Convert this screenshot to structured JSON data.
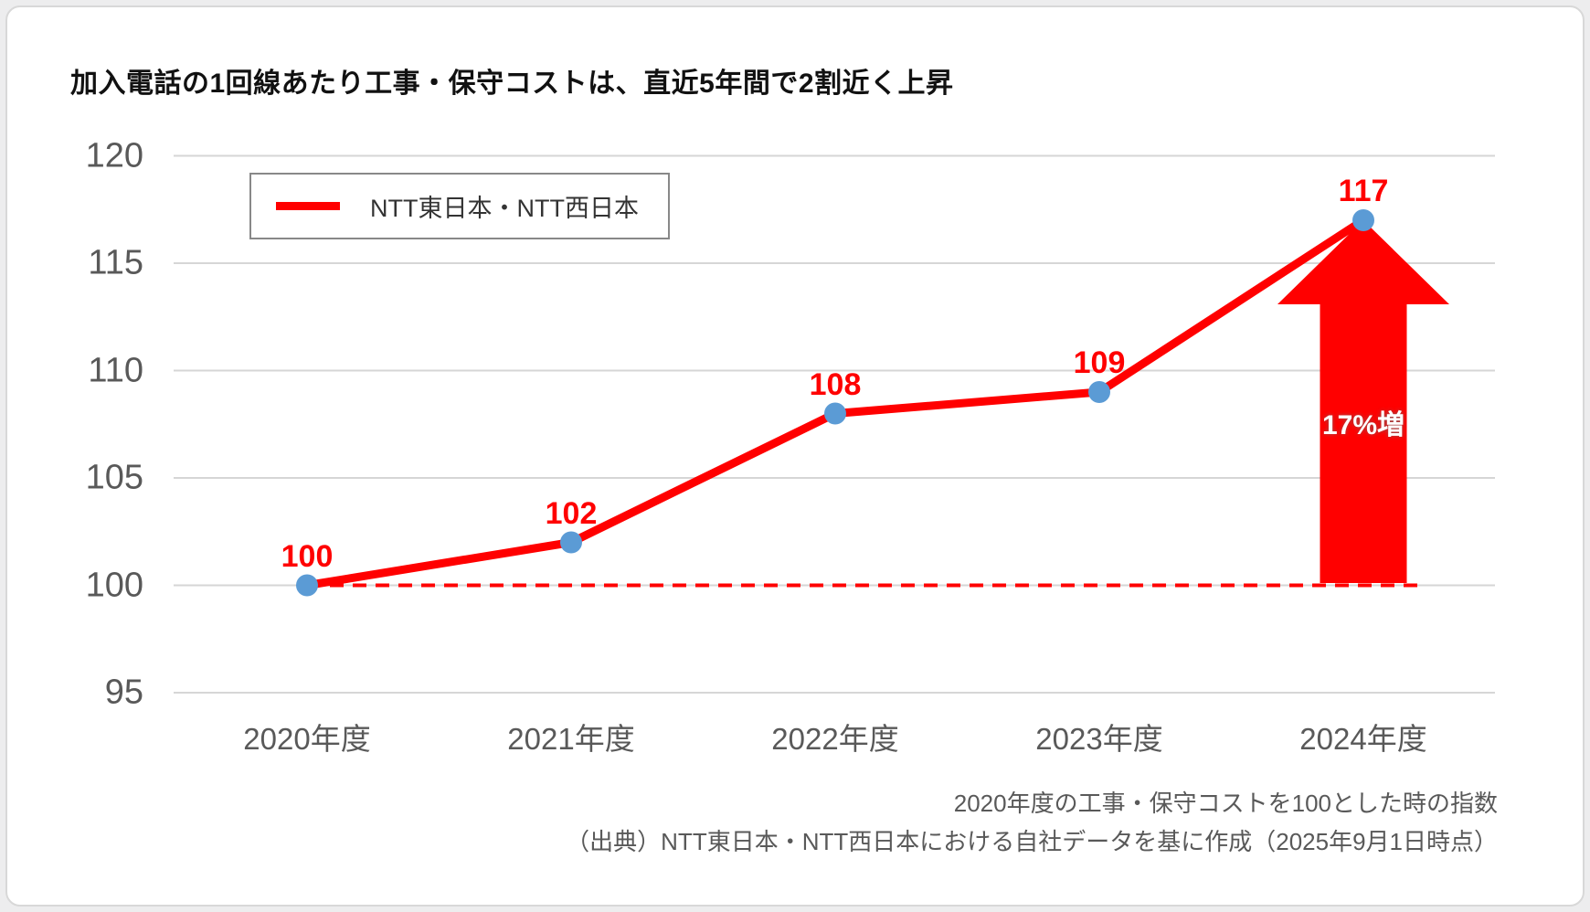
{
  "title": "加入電話の1回線あたり工事・保守コストは、直近5年間で2割近く上昇",
  "legend": {
    "label": "NTT東日本・NTT西日本"
  },
  "footnotes": [
    "2020年度の工事・保守コストを100とした時の指数",
    "（出典）NTT東日本・NTT西日本における自社データを基に作成（2025年9月1日時点）"
  ],
  "colors": {
    "line": "#ff0000",
    "marker": "#5b9bd5",
    "grid": "#d6d6d6",
    "axis_text": "#595959",
    "data_label": "#ff0000",
    "arrow": "#ff0000"
  },
  "chart_data": {
    "type": "line",
    "categories": [
      "2020年度",
      "2021年度",
      "2022年度",
      "2023年度",
      "2024年度"
    ],
    "series": [
      {
        "name": "NTT東日本・NTT西日本",
        "values": [
          100,
          102,
          108,
          109,
          117
        ]
      }
    ],
    "data_labels": [
      "100",
      "102",
      "108",
      "109",
      "117"
    ],
    "yticks": [
      95,
      100,
      105,
      110,
      115,
      120
    ],
    "ylim": [
      95,
      120
    ],
    "grid": "horizontal",
    "legend_position": "top-left",
    "baseline": {
      "value": 100,
      "style": "dashed"
    },
    "annotations": [
      {
        "type": "up-arrow",
        "text": "17%増",
        "at_category": "2024年度",
        "value": 117
      }
    ]
  }
}
